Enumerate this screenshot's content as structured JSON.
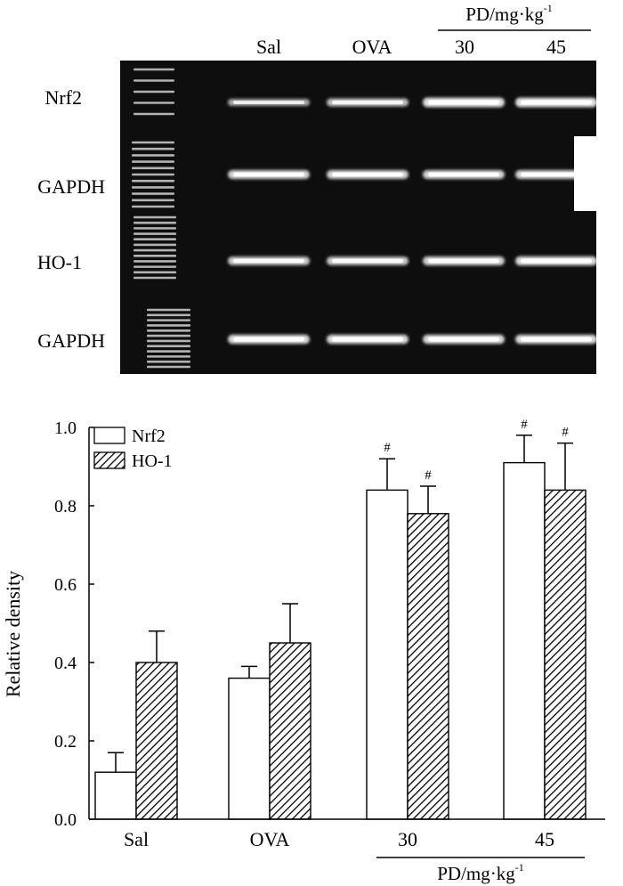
{
  "gel": {
    "header": {
      "lanes": [
        "Sal",
        "OVA",
        "30",
        "45"
      ],
      "pd_label_main": "PD/mg·kg",
      "pd_label_sup": "-1"
    },
    "rows": [
      {
        "label": "Nrf2",
        "band_intensity": [
          0.55,
          0.7,
          0.95,
          0.95
        ]
      },
      {
        "label": "GAPDH",
        "band_intensity": [
          0.85,
          0.85,
          0.85,
          0.85
        ]
      },
      {
        "label": "HO-1",
        "band_intensity": [
          0.8,
          0.8,
          0.85,
          0.9
        ]
      },
      {
        "label": "GAPDH",
        "band_intensity": [
          0.9,
          0.9,
          0.9,
          0.9
        ]
      }
    ]
  },
  "chart_data": {
    "type": "bar",
    "categories": [
      "Sal",
      "OVA",
      "30",
      "45"
    ],
    "group_label_main": "PD/mg·kg",
    "group_label_sup": "-1",
    "ylabel": "Relative density",
    "ylim": [
      0,
      1.0
    ],
    "yticks": [
      "0.0",
      "0.2",
      "0.4",
      "0.6",
      "0.8",
      "1.0"
    ],
    "legend_position": "top-left",
    "series": [
      {
        "name": "Nrf2",
        "fill": "open",
        "values": [
          0.12,
          0.36,
          0.84,
          0.91
        ],
        "errors": [
          0.05,
          0.03,
          0.08,
          0.07
        ],
        "marks": [
          "",
          "",
          "#",
          "#"
        ]
      },
      {
        "name": "HO-1",
        "fill": "hatched",
        "values": [
          0.4,
          0.45,
          0.78,
          0.84
        ],
        "errors": [
          0.08,
          0.1,
          0.07,
          0.12
        ],
        "marks": [
          "",
          "",
          "#",
          "#"
        ]
      }
    ]
  },
  "colors": {
    "gel_bg": "#0e0e0e",
    "band": "#ffffff",
    "bar_stroke": "#000000"
  }
}
